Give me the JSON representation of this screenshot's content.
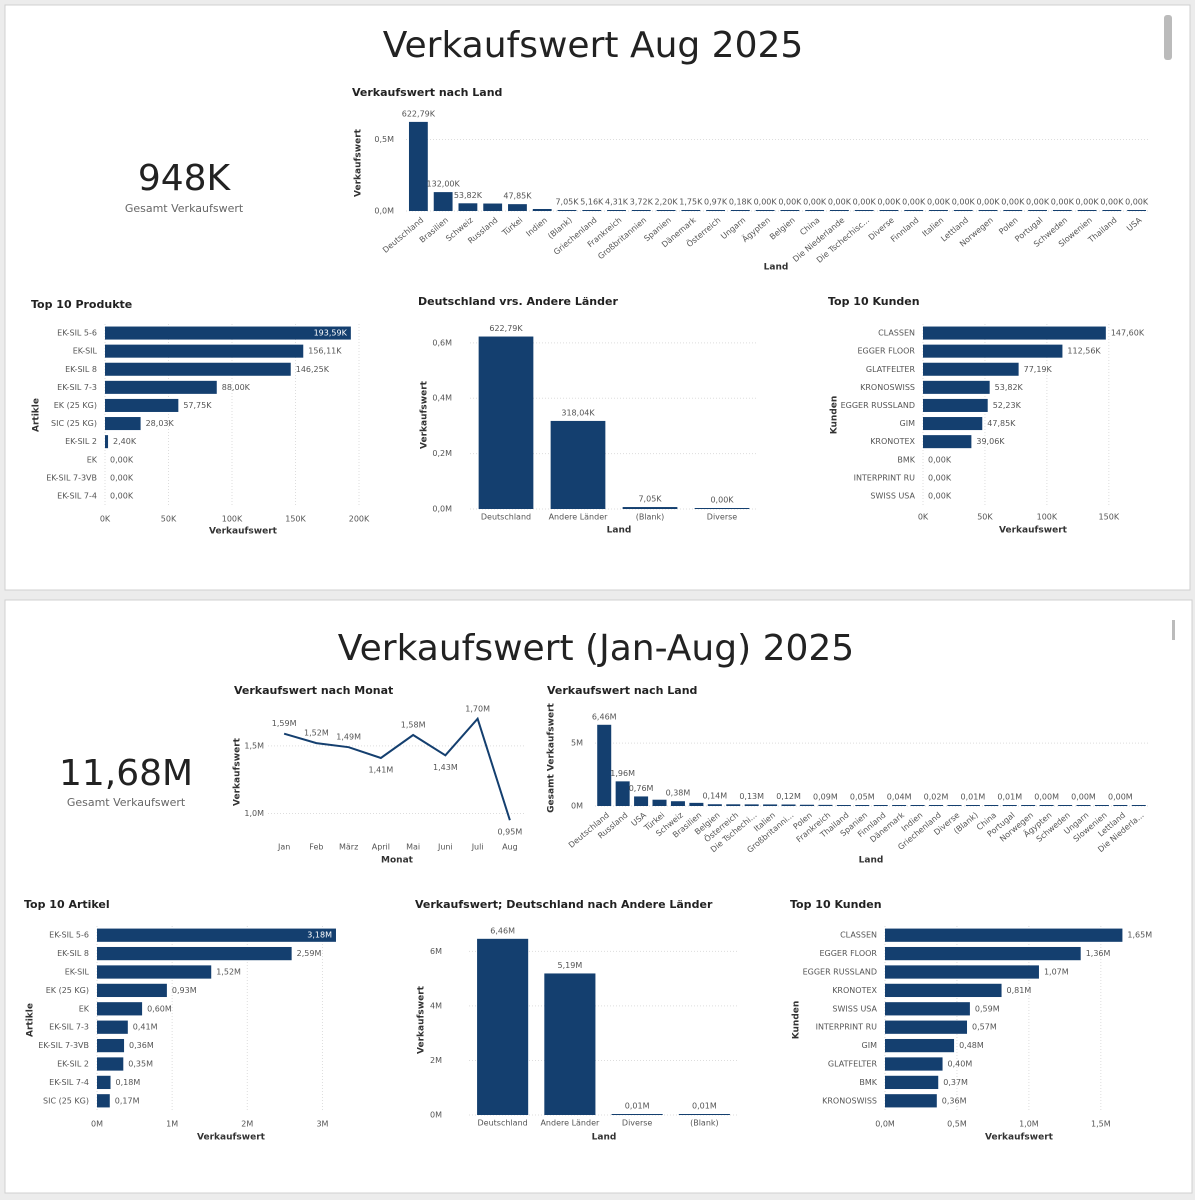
{
  "panels": [
    {
      "title": "Verkaufswert Aug 2025",
      "kpi": {
        "value": "948K",
        "label": "Gesamt Verkaufswert"
      }
    },
    {
      "title": "Verkaufswert (Jan-Aug) 2025",
      "kpi": {
        "value": "11,68M",
        "label": "Gesamt Verkaufswert"
      }
    }
  ],
  "chart_data": [
    {
      "type": "bar",
      "title": "Verkaufswert nach Land",
      "x_label": "Land",
      "y_label": "Verkaufswert",
      "color": "#143f6f",
      "grid": true,
      "categories": [
        "Deutschland",
        "Brasilien",
        "Schweiz",
        "Russland",
        "Türkei",
        "Indien",
        "(Blank)",
        "Griechenland",
        "Frankreich",
        "Großbritannien",
        "Spanien",
        "Dänemark",
        "Österreich",
        "Ungarn",
        "Ägypten",
        "Belgien",
        "China",
        "Die Niederlande",
        "Die Tschechisc...",
        "Diverse",
        "Finnland",
        "Italien",
        "Lettland",
        "Norwegen",
        "Polen",
        "Portugal",
        "Schweden",
        "Slowenien",
        "Thailand",
        "USA"
      ],
      "values": [
        622790,
        132000,
        53820,
        52230,
        47850,
        14000,
        7050,
        5160,
        4310,
        3720,
        2200,
        1750,
        970,
        180,
        0,
        0,
        0,
        0,
        0,
        0,
        0,
        0,
        0,
        0,
        0,
        0,
        0,
        0,
        0,
        0
      ],
      "value_labels": [
        "622,79K",
        "132,00K",
        "53,82K",
        null,
        "47,85K",
        null,
        "7,05K",
        "5,16K",
        "4,31K",
        "3,72K",
        "2,20K",
        "1,75K",
        "0,97K",
        "0,18K",
        "0,00K",
        "0,00K",
        "0,00K",
        "0,00K",
        "0,00K",
        "0,00K",
        "0,00K",
        "0,00K",
        "0,00K",
        "0,00K",
        "0,00K",
        "0,00K",
        "0,00K",
        "0,00K",
        "0,00K",
        "0,00K"
      ],
      "ylim": [
        0,
        650000
      ],
      "yticks": [
        {
          "value": 0,
          "label": "0,0M"
        },
        {
          "value": 500000,
          "label": "0,5M"
        }
      ]
    },
    {
      "type": "hbar",
      "title": "Top 10 Produkte",
      "x_label": "Verkaufswert",
      "y_label": "Artikle",
      "color": "#143f6f",
      "grid": true,
      "categories": [
        "EK-SIL 5-6",
        "EK-SIL",
        "EK-SIL 8",
        "EK-SIL 7-3",
        "EK (25 KG)",
        "SIC (25 KG)",
        "EK-SIL 2",
        "EK",
        "EK-SIL 7-3VB",
        "EK-SIL 7-4"
      ],
      "values": [
        193590,
        156110,
        146250,
        88000,
        57750,
        28030,
        2400,
        0,
        0,
        0
      ],
      "value_labels": [
        "193,59K",
        "156,11K",
        "146,25K",
        "88,00K",
        "57,75K",
        "28,03K",
        "2,40K",
        "0,00K",
        "0,00K",
        "0,00K"
      ],
      "xlim": [
        0,
        200000
      ],
      "xticks": [
        {
          "value": 0,
          "label": "0K"
        },
        {
          "value": 50000,
          "label": "50K"
        },
        {
          "value": 100000,
          "label": "100K"
        },
        {
          "value": 150000,
          "label": "150K"
        },
        {
          "value": 200000,
          "label": "200K"
        }
      ]
    },
    {
      "type": "bar",
      "title": "Deutschland vrs. Andere Länder",
      "x_label": "Land",
      "y_label": "Verkaufswert",
      "color": "#143f6f",
      "grid": true,
      "categories": [
        "Deutschland",
        "Andere Länder",
        "(Blank)",
        "Diverse"
      ],
      "values": [
        622790,
        318040,
        7050,
        0
      ],
      "value_labels": [
        "622,79K",
        "318,04K",
        "7,05K",
        "0,00K"
      ],
      "ylim": [
        0,
        650000
      ],
      "yticks": [
        {
          "value": 0,
          "label": "0,0M"
        },
        {
          "value": 200000,
          "label": "0,2M"
        },
        {
          "value": 400000,
          "label": "0,4M"
        },
        {
          "value": 600000,
          "label": "0,6M"
        }
      ]
    },
    {
      "type": "hbar",
      "title": "Top 10 Kunden",
      "x_label": "Verkaufswert",
      "y_label": "Kunden",
      "color": "#143f6f",
      "grid": true,
      "categories": [
        "CLASSEN",
        "EGGER FLOOR",
        "GLATFELTER",
        "KRONOSWISS",
        "EGGER RUSSLAND",
        "GIM",
        "KRONOTEX",
        "BMK",
        "INTERPRINT RU",
        "SWISS USA"
      ],
      "values": [
        147600,
        112560,
        77190,
        53820,
        52230,
        47850,
        39060,
        0,
        0,
        0
      ],
      "value_labels": [
        "147,60K",
        "112,56K",
        "77,19K",
        "53,82K",
        "52,23K",
        "47,85K",
        "39,06K",
        "0,00K",
        "0,00K",
        "0,00K"
      ],
      "xlim": [
        0,
        155000
      ],
      "xticks": [
        {
          "value": 0,
          "label": "0K"
        },
        {
          "value": 50000,
          "label": "50K"
        },
        {
          "value": 100000,
          "label": "100K"
        },
        {
          "value": 150000,
          "label": "150K"
        }
      ]
    },
    {
      "type": "line",
      "title": "Verkaufswert nach Monat",
      "x_label": "Monat",
      "y_label": "Verkaufswert",
      "color": "#143f6f",
      "grid": true,
      "categories": [
        "Jan",
        "Feb",
        "März",
        "April",
        "Mai",
        "Juni",
        "Juli",
        "Aug"
      ],
      "values": [
        1590000,
        1520000,
        1490000,
        1410000,
        1580000,
        1430000,
        1700000,
        950000
      ],
      "value_labels": [
        "1,59M",
        "1,52M",
        "1,49M",
        "1,41M",
        "1,58M",
        "1,43M",
        "1,70M",
        "0,95M"
      ],
      "ylim": [
        900000,
        1750000
      ],
      "yticks": [
        {
          "value": 1000000,
          "label": "1,0M"
        },
        {
          "value": 1500000,
          "label": "1,5M"
        }
      ]
    },
    {
      "type": "bar",
      "title": "Verkaufswert nach Land",
      "x_label": "Land",
      "y_label": "Gesamt Verkaufswert",
      "color": "#143f6f",
      "grid": true,
      "categories": [
        "Deutschland",
        "Russland",
        "USA",
        "Türkei",
        "Schweiz",
        "Brasilien",
        "Belgien",
        "Österreich",
        "Die Tschechi...",
        "Italien",
        "Großbritanni...",
        "Polen",
        "Frankreich",
        "Thailand",
        "Spanien",
        "Finnland",
        "Dänemark",
        "Indien",
        "Griechenland",
        "Diverse",
        "(Blank)",
        "China",
        "Portugal",
        "Norwegen",
        "Ägypten",
        "Schweden",
        "Ungarn",
        "Slowenien",
        "Lettland",
        "Die Niederla..."
      ],
      "values": [
        6460000,
        1960000,
        760000,
        500000,
        380000,
        250000,
        140000,
        135000,
        130000,
        125000,
        120000,
        100000,
        90000,
        70000,
        50000,
        45000,
        40000,
        30000,
        20000,
        12000,
        10000,
        10000,
        10000,
        5000,
        0,
        0,
        0,
        0,
        0,
        0
      ],
      "value_labels": [
        "6,46M",
        "1,96M",
        "0,76M",
        null,
        "0,38M",
        null,
        "0,14M",
        null,
        "0,13M",
        null,
        "0,12M",
        null,
        "0,09M",
        null,
        "0,05M",
        null,
        "0,04M",
        null,
        "0,02M",
        null,
        "0,01M",
        null,
        "0,01M",
        null,
        "0,00M",
        null,
        "0,00M",
        null,
        "0,00M",
        null
      ],
      "ylim": [
        0,
        7000000
      ],
      "yticks": [
        {
          "value": 0,
          "label": "0M"
        },
        {
          "value": 5000000,
          "label": "5M"
        }
      ]
    },
    {
      "type": "hbar",
      "title": "Top 10 Artikel",
      "x_label": "Verkaufswert",
      "y_label": "Artikle",
      "color": "#143f6f",
      "grid": true,
      "categories": [
        "EK-SIL 5-6",
        "EK-SIL 8",
        "EK-SIL",
        "EK (25 KG)",
        "EK",
        "EK-SIL 7-3",
        "EK-SIL 7-3VB",
        "EK-SIL 2",
        "EK-SIL 7-4",
        "SIC (25 KG)"
      ],
      "values": [
        3180000,
        2590000,
        1520000,
        930000,
        600000,
        410000,
        360000,
        350000,
        180000,
        170000
      ],
      "value_labels": [
        "3,18M",
        "2,59M",
        "1,52M",
        "0,93M",
        "0,60M",
        "0,41M",
        "0,36M",
        "0,35M",
        "0,18M",
        "0,17M"
      ],
      "xlim": [
        0,
        3300000
      ],
      "xticks": [
        {
          "value": 0,
          "label": "0M"
        },
        {
          "value": 1000000,
          "label": "1M"
        },
        {
          "value": 2000000,
          "label": "2M"
        },
        {
          "value": 3000000,
          "label": "3M"
        }
      ]
    },
    {
      "type": "bar",
      "title": "Verkaufswert; Deutschland nach Andere Länder",
      "x_label": "Land",
      "y_label": "Verkaufswert",
      "color": "#143f6f",
      "grid": true,
      "categories": [
        "Deutschland",
        "Andere Länder",
        "Diverse",
        "(Blank)"
      ],
      "values": [
        6460000,
        5190000,
        12000,
        10000
      ],
      "value_labels": [
        "6,46M",
        "5,19M",
        "0,01M",
        "0,01M"
      ],
      "ylim": [
        0,
        6600000
      ],
      "yticks": [
        {
          "value": 0,
          "label": "0M"
        },
        {
          "value": 2000000,
          "label": "2M"
        },
        {
          "value": 4000000,
          "label": "4M"
        },
        {
          "value": 6000000,
          "label": "6M"
        }
      ]
    },
    {
      "type": "hbar",
      "title": "Top 10 Kunden",
      "x_label": "Verkaufswert",
      "y_label": "Kunden",
      "color": "#143f6f",
      "grid": true,
      "categories": [
        "CLASSEN",
        "EGGER FLOOR",
        "EGGER RUSSLAND",
        "KRONOTEX",
        "SWISS USA",
        "INTERPRINT RU",
        "GIM",
        "GLATFELTER",
        "BMK",
        "KRONOSWISS"
      ],
      "values": [
        1650000,
        1360000,
        1070000,
        810000,
        590000,
        570000,
        480000,
        400000,
        370000,
        360000
      ],
      "value_labels": [
        "1,65M",
        "1,36M",
        "1,07M",
        "0,81M",
        "0,59M",
        "0,57M",
        "0,48M",
        "0,40M",
        "0,37M",
        "0,36M"
      ],
      "xlim": [
        0,
        1800000
      ],
      "xticks": [
        {
          "value": 0,
          "label": "0,0M"
        },
        {
          "value": 500000,
          "label": "0,5M"
        },
        {
          "value": 1000000,
          "label": "1,0M"
        },
        {
          "value": 1500000,
          "label": "1,5M"
        }
      ]
    }
  ]
}
